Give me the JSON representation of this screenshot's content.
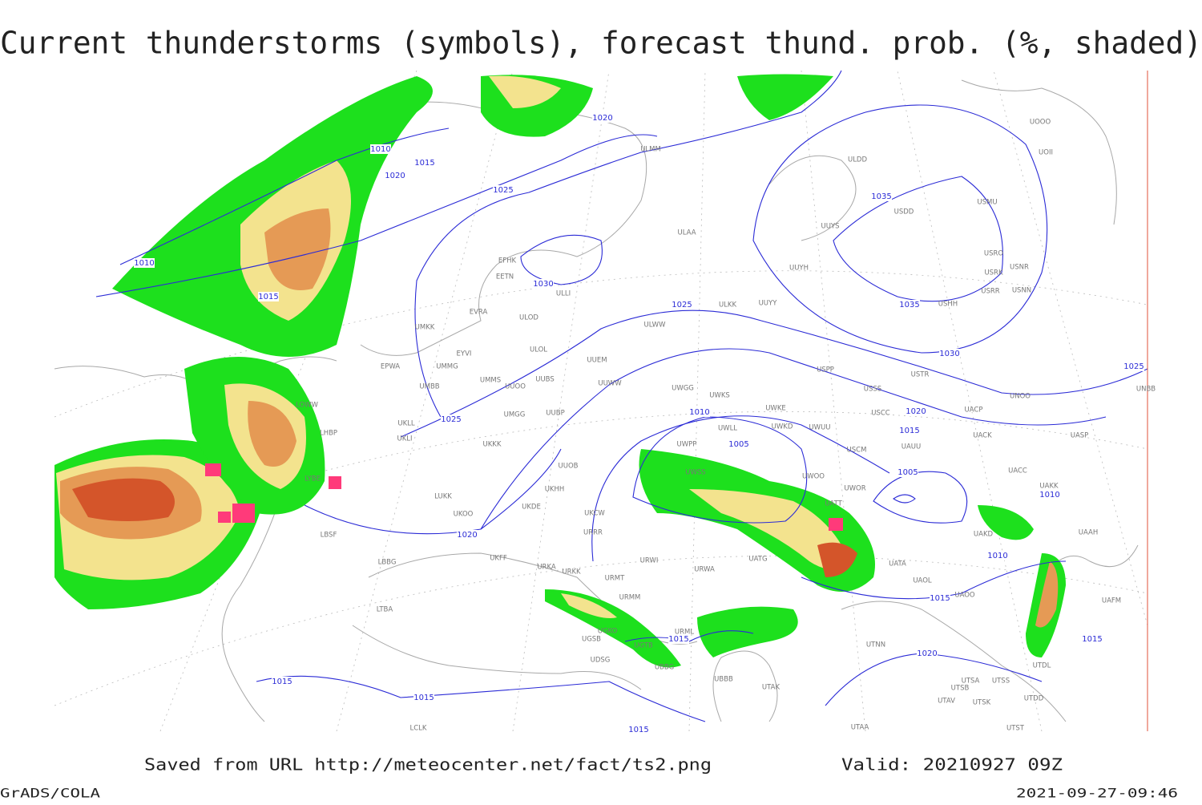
{
  "title": "Current thunderstorms (symbols), forecast thund. prob. (%, shaded)",
  "isobar_labels": [
    1020,
    1010,
    1015,
    1020,
    1025,
    1010,
    1015,
    1030,
    1025,
    1035,
    1035,
    1030,
    1025,
    1025,
    1010,
    1005,
    1020,
    1015,
    1005,
    1010,
    1020,
    1010,
    1015,
    1015,
    1015,
    1020,
    1015,
    1015,
    1015
  ],
  "stations": [
    "UOOO",
    "UOII",
    "ULMM",
    "ULDD",
    "USDD",
    "USMU",
    "UUYS",
    "ULAA",
    "EFHK",
    "EETN",
    "ULLI",
    "USRO",
    "USNR",
    "USRK",
    "UUYH",
    "USRR",
    "USNN",
    "USHH",
    "ULKK",
    "UUYY",
    "UMKK",
    "EVRA",
    "ULOD",
    "ULWW",
    "ULOL",
    "EYVI",
    "UUEM",
    "EPWA",
    "UMMG",
    "UMMS",
    "UUOO",
    "UUBS",
    "USPP",
    "USTR",
    "UUWW",
    "UMBB",
    "UWGG",
    "UWKS",
    "USSS",
    "UNOO",
    "UNBB",
    "UWKE",
    "USCC",
    "UACP",
    "UMGG",
    "UUBP",
    "UWKD",
    "UWUU",
    "UKLL",
    "UKLI",
    "UACK",
    "UASP",
    "UKKK",
    "UWPP",
    "UWLL",
    "USCM",
    "UAUU",
    "UUOB",
    "UWSS",
    "UWOO",
    "UACC",
    "UWOR",
    "UAKK",
    "LUKK",
    "UKHH",
    "UKOO",
    "UKDE",
    "UKCW",
    "UATT",
    "UAKD",
    "UAAH",
    "URRR",
    "LBSF",
    "UKFF",
    "LBBG",
    "URKA",
    "URKK",
    "URWI",
    "UATG",
    "UATA",
    "URWA",
    "URMT",
    "UAOL",
    "UAOO",
    "URMM",
    "UAFM",
    "UGKO",
    "URML",
    "UTNN",
    "UGSB",
    "UGTB",
    "UBBG",
    "UDSG",
    "UTDL",
    "UBBB",
    "UTAK",
    "UTSA",
    "UTSS",
    "UTSB",
    "UTAV",
    "UTSK",
    "UTDD",
    "UTAA",
    "UTST",
    "LCLK",
    "LTBA",
    "LHBP",
    "LOWW",
    "LYBE"
  ],
  "footer": {
    "source": "Saved from URL http://meteocenter.net/fact/ts2.png",
    "valid": "Valid: 20210927 09Z",
    "software": "GrADS/COLA",
    "timestamp": "2021-09-27-09:46"
  }
}
